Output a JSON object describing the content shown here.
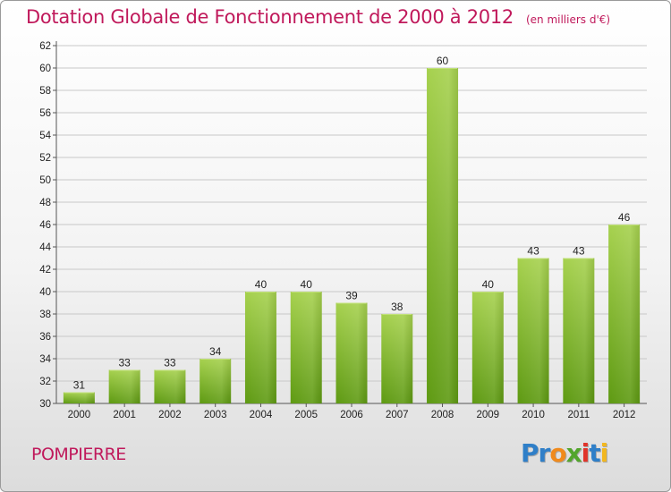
{
  "title": "Dotation Globale de Fonctionnement de 2000 à 2012",
  "subtitle": "(en milliers d'€)",
  "commune": "POMPIERRE",
  "logo": {
    "p1": "Pr",
    "p2": "o",
    "p3": "x",
    "p4": "i",
    "p5": "t",
    "p6": "i"
  },
  "colors": {
    "title": "#c0195b",
    "bar_light": "#a6d14e",
    "bar_dark": "#5e9a12",
    "grid": "#c8c8c8"
  },
  "chart_data": {
    "type": "bar",
    "title": "Dotation Globale de Fonctionnement de 2000 à 2012",
    "subtitle": "(en milliers d'€)",
    "categories": [
      "2000",
      "2001",
      "2002",
      "2003",
      "2004",
      "2005",
      "2006",
      "2007",
      "2008",
      "2009",
      "2010",
      "2011",
      "2012"
    ],
    "values": [
      31,
      33,
      33,
      34,
      40,
      40,
      39,
      38,
      60,
      40,
      43,
      43,
      46
    ],
    "ylim": [
      30,
      62
    ],
    "yticks": [
      30,
      32,
      34,
      36,
      38,
      40,
      42,
      44,
      46,
      48,
      50,
      52,
      54,
      56,
      58,
      60,
      62
    ],
    "grid": true,
    "data_labels": true
  }
}
